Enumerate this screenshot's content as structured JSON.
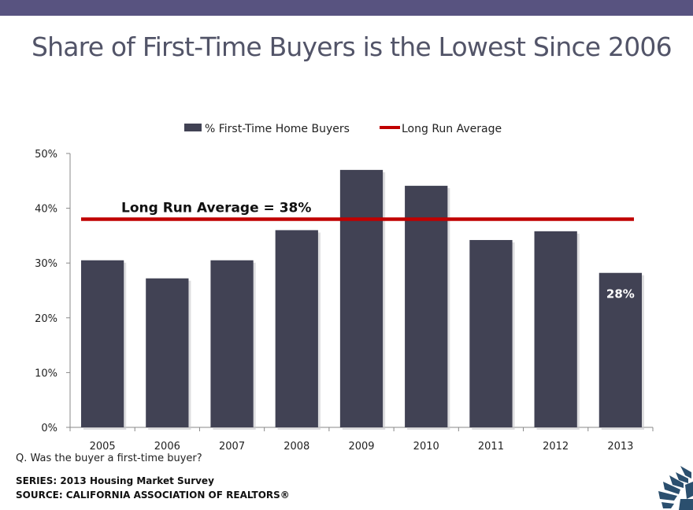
{
  "header": {
    "title": "Share of First-Time Buyers is the Lowest Since 2006"
  },
  "chart_data": {
    "type": "bar",
    "categories": [
      "2005",
      "2006",
      "2007",
      "2008",
      "2009",
      "2010",
      "2011",
      "2012",
      "2013"
    ],
    "series": [
      {
        "name": "% First-Time Home Buyers",
        "values": [
          30.5,
          27.2,
          30.5,
          36.0,
          47.0,
          44.1,
          34.2,
          35.8,
          28.2
        ],
        "color": "#414254"
      }
    ],
    "average_line": {
      "name": "Long Run Average",
      "value": 38,
      "color": "#C00000",
      "annotation": "Long Run Average = 38%"
    },
    "data_labels": [
      {
        "category": "2013",
        "text": "28%"
      }
    ],
    "yticks": [
      "0%",
      "10%",
      "20%",
      "30%",
      "40%",
      "50%"
    ],
    "ylim": [
      0,
      50
    ],
    "grid": false,
    "legend_position": "top"
  },
  "footer": {
    "question": "Q. Was the buyer a first-time buyer?",
    "series": "SERIES: 2013 Housing Market Survey",
    "source": "SOURCE:  CALIFORNIA ASSOCIATION OF REALTORS®"
  },
  "logo": {
    "icon": "california-association-of-realtors-logo",
    "color": "#2B4F6E"
  }
}
